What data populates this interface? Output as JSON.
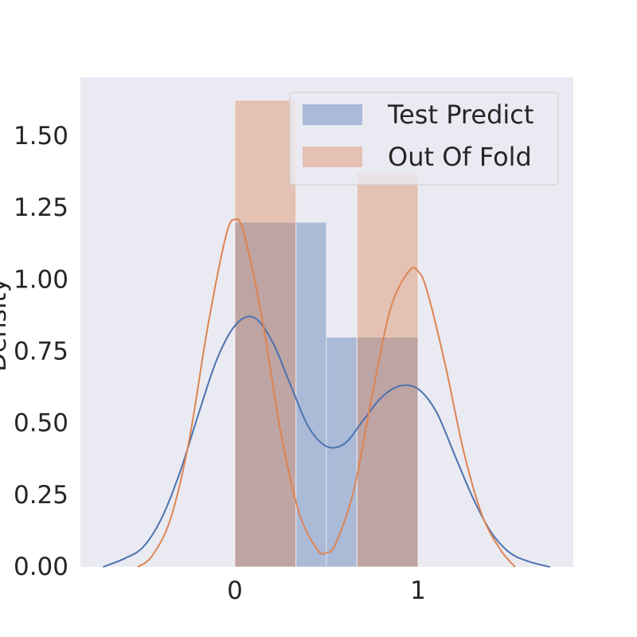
{
  "chart_data": {
    "type": "bar",
    "title": "",
    "xlabel": "",
    "ylabel": "Density",
    "xlim": [
      -0.72,
      1.72
    ],
    "ylim": [
      0,
      1.65
    ],
    "x_ticks": [
      0,
      1
    ],
    "x_tick_labels": [
      "0",
      "1"
    ],
    "y_ticks": [
      0.0,
      0.25,
      0.5,
      0.75,
      1.0,
      1.25,
      1.5
    ],
    "y_tick_labels": [
      "0.00",
      "0.25",
      "0.50",
      "0.75",
      "1.00",
      "1.25",
      "1.50"
    ],
    "grid": false,
    "legend_position": "top-right",
    "series": [
      {
        "name": "Test Predict",
        "color": "#4c72b0",
        "bar_opacity": 0.4,
        "bins": [
          {
            "x0": 0.0,
            "x1": 0.3333,
            "value": 1.2
          },
          {
            "x0": 0.3333,
            "x1": 0.5,
            "value": 1.2
          },
          {
            "x0": 0.5,
            "x1": 0.6667,
            "value": 0.8
          },
          {
            "x0": 0.6667,
            "x1": 1.0,
            "value": 0.8
          }
        ],
        "kde": {
          "x": [
            -0.72,
            -0.6,
            -0.5,
            -0.4,
            -0.3,
            -0.2,
            -0.1,
            0.0,
            0.1,
            0.2,
            0.3,
            0.4,
            0.5,
            0.6,
            0.7,
            0.8,
            0.9,
            1.0,
            1.1,
            1.2,
            1.3,
            1.4,
            1.5,
            1.6,
            1.72
          ],
          "y": [
            0.0,
            0.03,
            0.07,
            0.17,
            0.33,
            0.53,
            0.72,
            0.84,
            0.87,
            0.79,
            0.64,
            0.49,
            0.42,
            0.43,
            0.51,
            0.59,
            0.63,
            0.62,
            0.54,
            0.39,
            0.24,
            0.12,
            0.05,
            0.02,
            0.0
          ]
        }
      },
      {
        "name": "Out Of Fold",
        "color": "#dd8452",
        "bar_opacity": 0.4,
        "bins": [
          {
            "x0": 0.0,
            "x1": 0.3333,
            "value": 1.625
          },
          {
            "x0": 0.6667,
            "x1": 1.0,
            "value": 1.375
          }
        ],
        "kde": {
          "x": [
            -0.53,
            -0.45,
            -0.35,
            -0.25,
            -0.15,
            -0.05,
            0.0,
            0.05,
            0.15,
            0.25,
            0.35,
            0.45,
            0.5,
            0.55,
            0.65,
            0.75,
            0.85,
            0.95,
            1.0,
            1.05,
            1.15,
            1.25,
            1.35,
            1.45,
            1.53
          ],
          "y": [
            0.0,
            0.04,
            0.17,
            0.44,
            0.83,
            1.15,
            1.21,
            1.16,
            0.86,
            0.47,
            0.19,
            0.06,
            0.05,
            0.08,
            0.27,
            0.6,
            0.9,
            1.03,
            1.03,
            0.96,
            0.7,
            0.4,
            0.18,
            0.06,
            0.0
          ]
        }
      }
    ]
  }
}
